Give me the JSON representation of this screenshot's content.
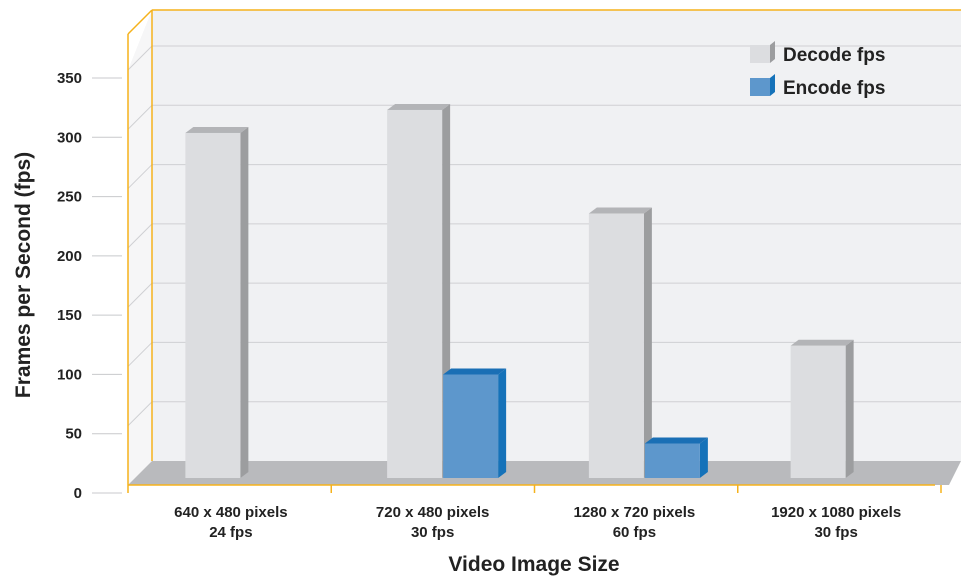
{
  "chart_data": {
    "type": "bar",
    "title": "",
    "xlabel": "Video Image Size",
    "ylabel": "Frames per Second (fps)",
    "ylim": [
      0,
      350
    ],
    "yticks": [
      0,
      50,
      100,
      150,
      200,
      250,
      300,
      350
    ],
    "grid": true,
    "legend_position": "top-right",
    "categories": [
      {
        "line1": "640 x 480 pixels",
        "line2": "24 fps"
      },
      {
        "line1": "720 x 480 pixels",
        "line2": "30 fps"
      },
      {
        "line1": "1280 x 720 pixels",
        "line2": "60 fps"
      },
      {
        "line1": "1920 x 1080 pixels",
        "line2": "30 fps"
      }
    ],
    "series": [
      {
        "name": "Decode fps",
        "color": "#dcdde0",
        "values": [
          300,
          320,
          230,
          115
        ]
      },
      {
        "name": "Encode fps",
        "color": "#5d97cc",
        "values": [
          null,
          90,
          30,
          null
        ]
      }
    ]
  },
  "colors": {
    "frame": "#f5b21c",
    "back_wall": "#f0f1f3",
    "floor": "#b9babd",
    "grid": "#cfd0d3",
    "decode_side": "#9c9d9f",
    "decode_top": "#b3b4b7",
    "encode_side": "#1572b9",
    "encode_top": "#1a6fb5"
  }
}
